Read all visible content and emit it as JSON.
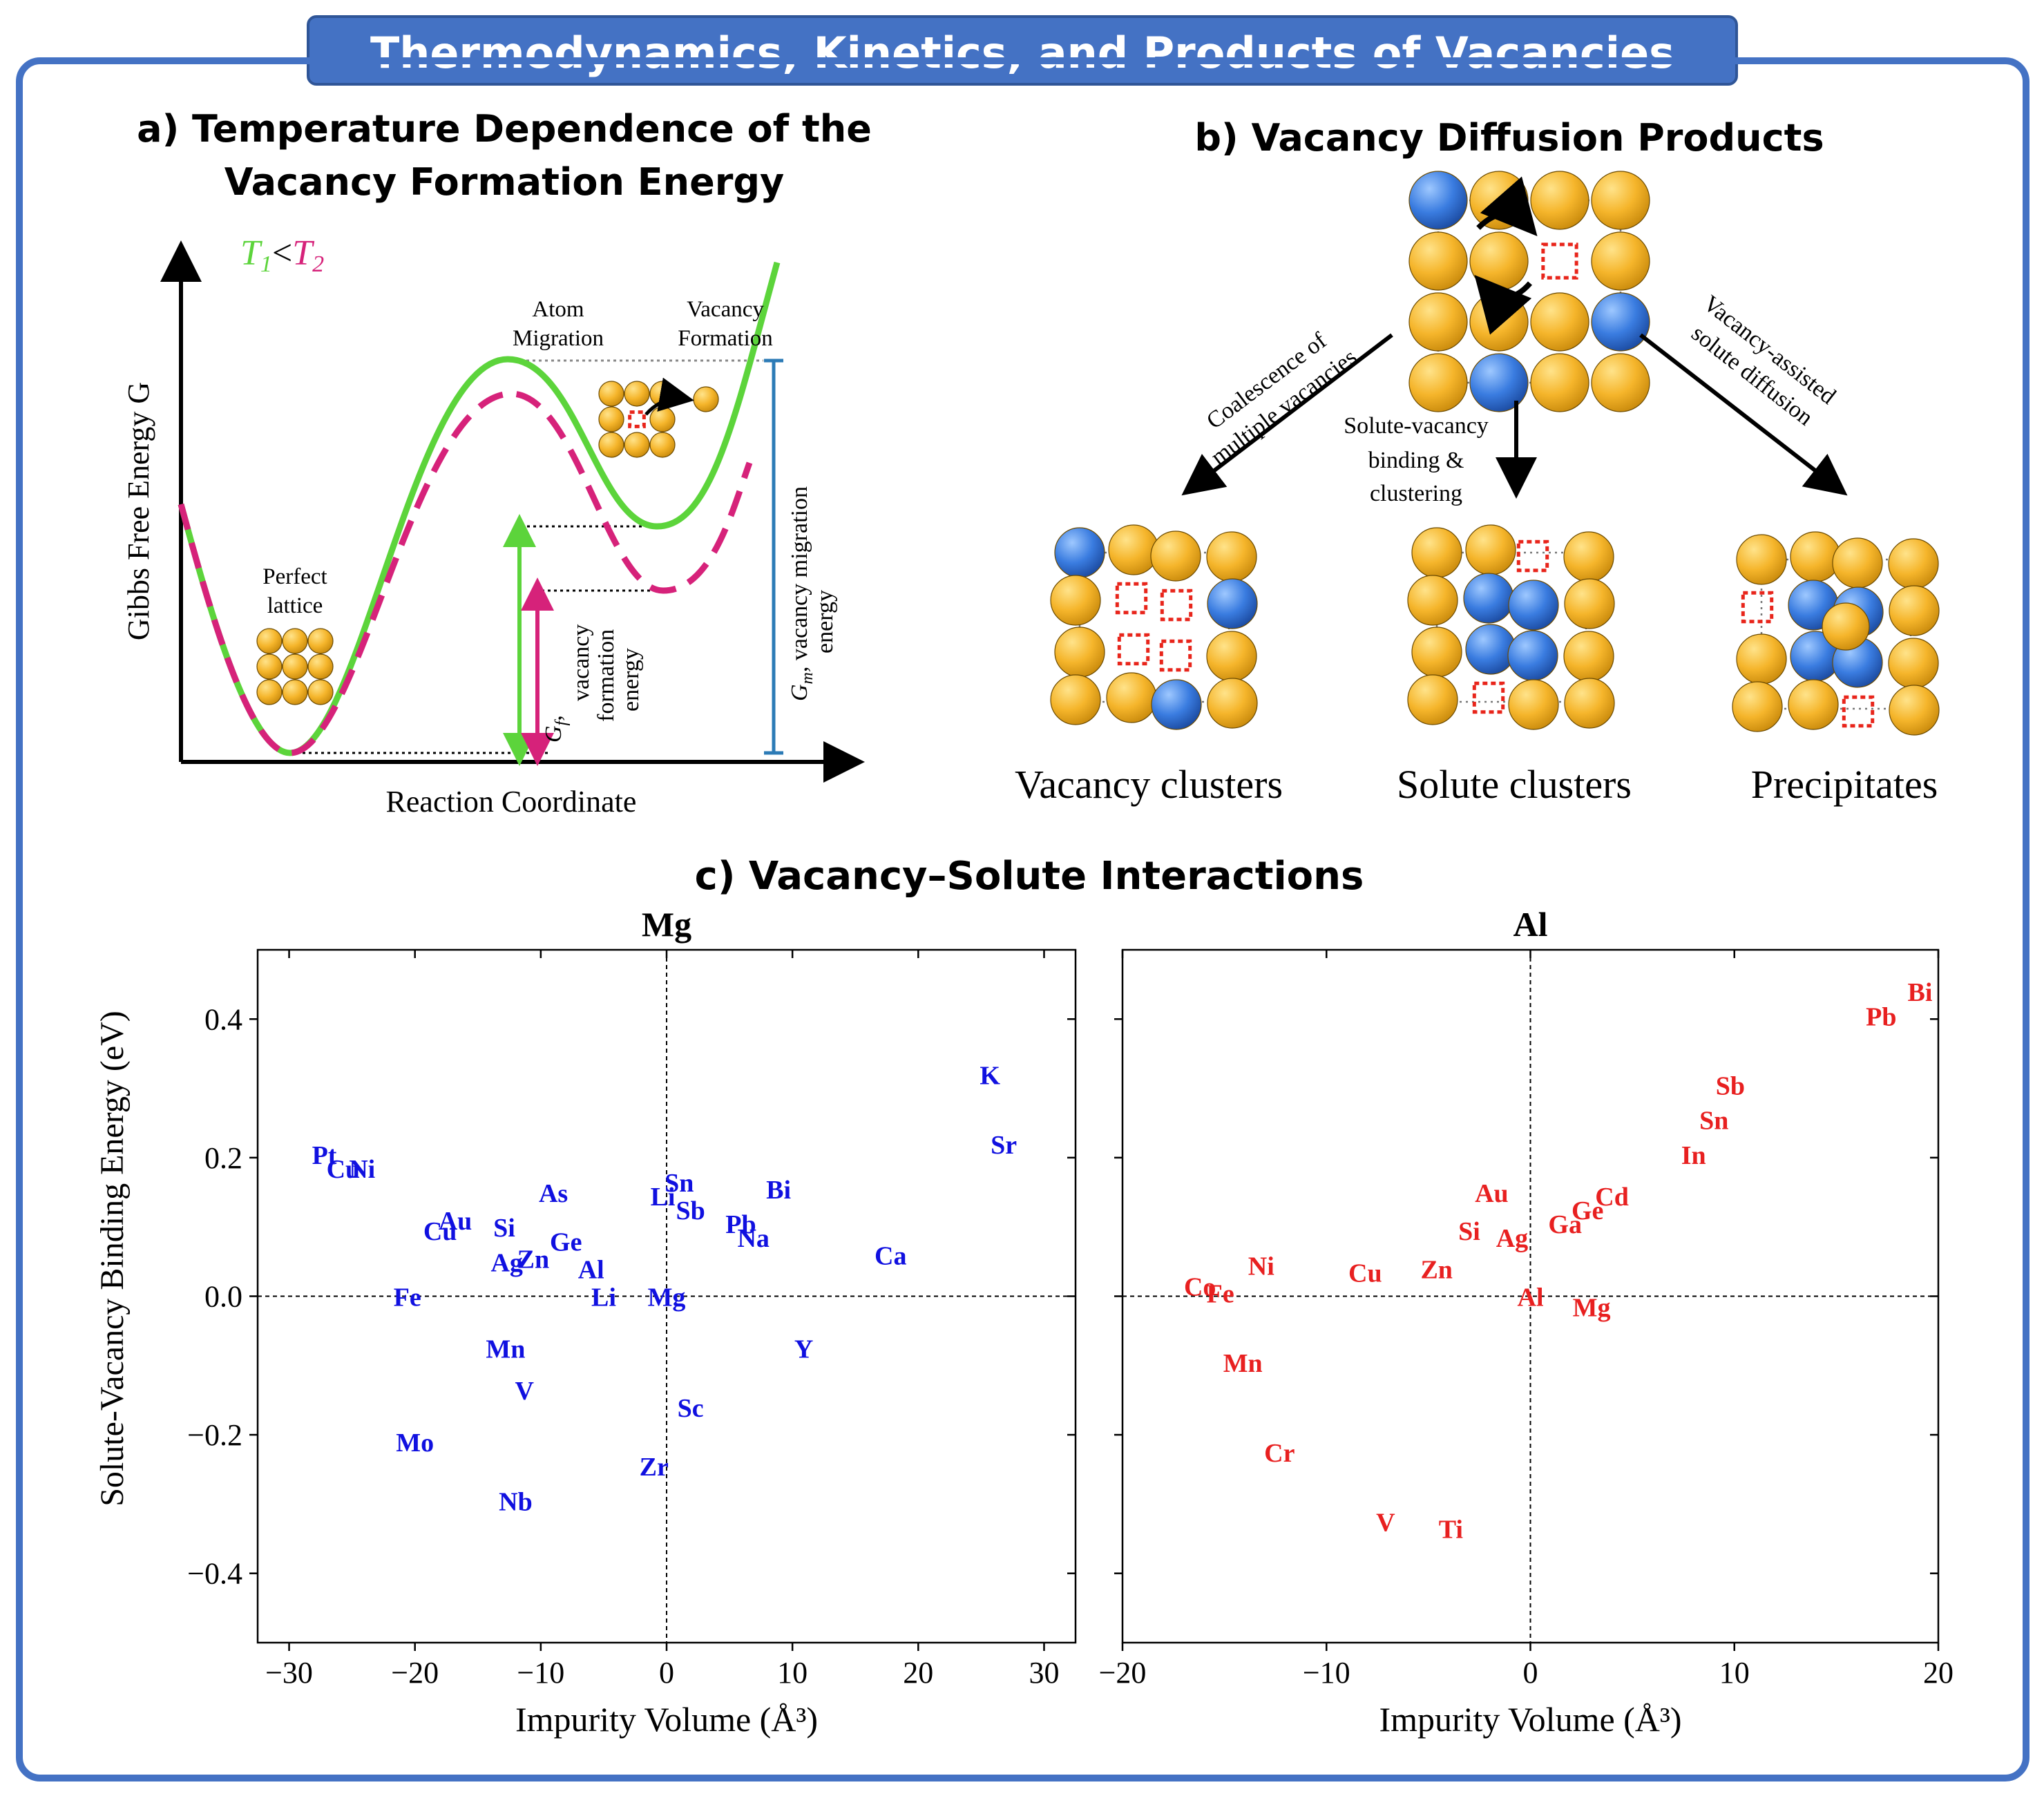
{
  "header": {
    "title": "Thermodynamics, Kinetics, and Products of Vacancies"
  },
  "colors": {
    "frame": "#4472C4",
    "frame_dark": "#2F5597",
    "green": "#5CD43B",
    "magenta": "#D6227A",
    "gold": "#F2B630",
    "blue": "#3A7CE0",
    "vacancy": "#E8251B",
    "mg_text": "#1010E0",
    "al_text": "#E82020"
  },
  "panel_a": {
    "title_line1": "a) Temperature Dependence of the",
    "title_line2": "Vacancy Formation Energy",
    "legend_t1": "T",
    "legend_t1_sub": "1",
    "legend_lt": "<",
    "legend_t2": "T",
    "legend_t2_sub": "2",
    "ylabel": "Gibbs Free Energy G",
    "xlabel": "Reaction Coordinate",
    "perfect_lattice_line1": "Perfect",
    "perfect_lattice_line2": "lattice",
    "atom_migration_line1": "Atom",
    "atom_migration_line2": "Migration",
    "vacancy_formation_line1": "Vacancy",
    "vacancy_formation_line2": "Formation",
    "gf_symbol": "G",
    "gf_sub": "f",
    "gf_line1_rest": ",",
    "gf_line2": "vacancy",
    "gf_line3": "formation",
    "gf_line4": "energy",
    "gm_symbol": "G",
    "gm_sub": "m",
    "gm_line1_rest": ", vacancy migration",
    "gm_line2": "energy"
  },
  "panel_b": {
    "title": "b) Vacancy Diffusion Products",
    "arrow_left_line1": "Coalescence of",
    "arrow_left_line2": "multiple vacancies",
    "arrow_mid_line1": "Solute-vacancy",
    "arrow_mid_line2": "binding &",
    "arrow_mid_line3": "clustering",
    "arrow_right_line1": "Vacancy-assisted",
    "arrow_right_line2": "solute diffusion",
    "label_left": "Vacancy clusters",
    "label_mid": "Solute clusters",
    "label_right": "Precipitates"
  },
  "panel_c": {
    "title": "c) Vacancy–Solute Interactions",
    "ylabel": "Solute-Vacancy Binding Energy (eV)",
    "y_ticks": [
      "0.4",
      "0.2",
      "0.0",
      "−0.2",
      "−0.4"
    ],
    "y_tick_values": [
      0.4,
      0.2,
      0.0,
      -0.2,
      -0.4
    ]
  },
  "chart_data": [
    {
      "type": "scatter",
      "title": "Mg",
      "xlabel": "Impurity Volume (Å³)",
      "ylabel": "Solute-Vacancy Binding Energy (eV)",
      "xlim": [
        -32.5,
        32.5
      ],
      "ylim": [
        -0.5,
        0.5
      ],
      "x_ticks": [
        -30,
        -20,
        -10,
        0,
        10,
        20,
        30
      ],
      "x_tick_labels": [
        "−30",
        "−20",
        "−10",
        "0",
        "10",
        "20",
        "30"
      ],
      "grid": false,
      "reference_lines": {
        "x": 0,
        "y": 0
      },
      "point_color": "#1010E0",
      "points": [
        {
          "label": "K",
          "x": 25.7,
          "y": 0.32
        },
        {
          "label": "Sr",
          "x": 26.8,
          "y": 0.22
        },
        {
          "label": "Pt",
          "x": -27.2,
          "y": 0.205
        },
        {
          "label": "Cu",
          "x": -25.7,
          "y": 0.185
        },
        {
          "label": "Ni",
          "x": -24.2,
          "y": 0.185
        },
        {
          "label": "As",
          "x": -9.0,
          "y": 0.15
        },
        {
          "label": "Sn",
          "x": 1.0,
          "y": 0.165
        },
        {
          "label": "Li",
          "x": -0.3,
          "y": 0.145
        },
        {
          "label": "Sb",
          "x": 1.9,
          "y": 0.125
        },
        {
          "label": "Bi",
          "x": 8.9,
          "y": 0.155
        },
        {
          "label": "Au",
          "x": -16.8,
          "y": 0.11
        },
        {
          "label": "Cu",
          "x": -18.0,
          "y": 0.095
        },
        {
          "label": "Si",
          "x": -12.9,
          "y": 0.1
        },
        {
          "label": "Pb",
          "x": 5.9,
          "y": 0.105
        },
        {
          "label": "Na",
          "x": 6.9,
          "y": 0.085
        },
        {
          "label": "Ge",
          "x": -8.0,
          "y": 0.08
        },
        {
          "label": "Ag",
          "x": -12.7,
          "y": 0.05
        },
        {
          "label": "Zn",
          "x": -10.6,
          "y": 0.055
        },
        {
          "label": "Al",
          "x": -6.0,
          "y": 0.04
        },
        {
          "label": "Ca",
          "x": 17.8,
          "y": 0.06
        },
        {
          "label": "Fe",
          "x": -20.6,
          "y": 0.0
        },
        {
          "label": "Li",
          "x": -5.0,
          "y": 0.0
        },
        {
          "label": "Mg",
          "x": 0.0,
          "y": 0.0
        },
        {
          "label": "Mn",
          "x": -12.8,
          "y": -0.075
        },
        {
          "label": "Y",
          "x": 10.9,
          "y": -0.075
        },
        {
          "label": "V",
          "x": -11.3,
          "y": -0.135
        },
        {
          "label": "Sc",
          "x": 1.9,
          "y": -0.16
        },
        {
          "label": "Mo",
          "x": -20.0,
          "y": -0.21
        },
        {
          "label": "Zr",
          "x": -1.0,
          "y": -0.245
        },
        {
          "label": "Nb",
          "x": -12.0,
          "y": -0.295
        }
      ]
    },
    {
      "type": "scatter",
      "title": "Al",
      "xlabel": "Impurity Volume (Å³)",
      "ylabel": "",
      "xlim": [
        -20,
        20
      ],
      "ylim": [
        -0.5,
        0.5
      ],
      "x_ticks": [
        -20,
        -10,
        0,
        10,
        20
      ],
      "x_tick_labels": [
        "−20",
        "−10",
        "0",
        "10",
        "20"
      ],
      "grid": false,
      "reference_lines": {
        "x": 0,
        "y": 0
      },
      "point_color": "#E82020",
      "points": [
        {
          "label": "Bi",
          "x": 19.1,
          "y": 0.44
        },
        {
          "label": "Pb",
          "x": 17.2,
          "y": 0.405
        },
        {
          "label": "Sb",
          "x": 9.8,
          "y": 0.305
        },
        {
          "label": "Sn",
          "x": 9.0,
          "y": 0.255
        },
        {
          "label": "In",
          "x": 8.0,
          "y": 0.205
        },
        {
          "label": "Au",
          "x": -1.9,
          "y": 0.15
        },
        {
          "label": "Cd",
          "x": 4.0,
          "y": 0.145
        },
        {
          "label": "Ge",
          "x": 2.8,
          "y": 0.125
        },
        {
          "label": "Ga",
          "x": 1.7,
          "y": 0.105
        },
        {
          "label": "Si",
          "x": -3.0,
          "y": 0.095
        },
        {
          "label": "Ag",
          "x": -0.9,
          "y": 0.085
        },
        {
          "label": "Ni",
          "x": -13.2,
          "y": 0.045
        },
        {
          "label": "Cu",
          "x": -8.1,
          "y": 0.035
        },
        {
          "label": "Zn",
          "x": -4.6,
          "y": 0.04
        },
        {
          "label": "Co",
          "x": -16.2,
          "y": 0.015
        },
        {
          "label": "Fe",
          "x": -15.2,
          "y": 0.005
        },
        {
          "label": "Al",
          "x": 0.0,
          "y": 0.0
        },
        {
          "label": "Mg",
          "x": 3.0,
          "y": -0.015
        },
        {
          "label": "Mn",
          "x": -14.1,
          "y": -0.095
        },
        {
          "label": "Cr",
          "x": -12.3,
          "y": -0.225
        },
        {
          "label": "V",
          "x": -7.1,
          "y": -0.325
        },
        {
          "label": "Ti",
          "x": -3.9,
          "y": -0.335
        }
      ]
    }
  ]
}
